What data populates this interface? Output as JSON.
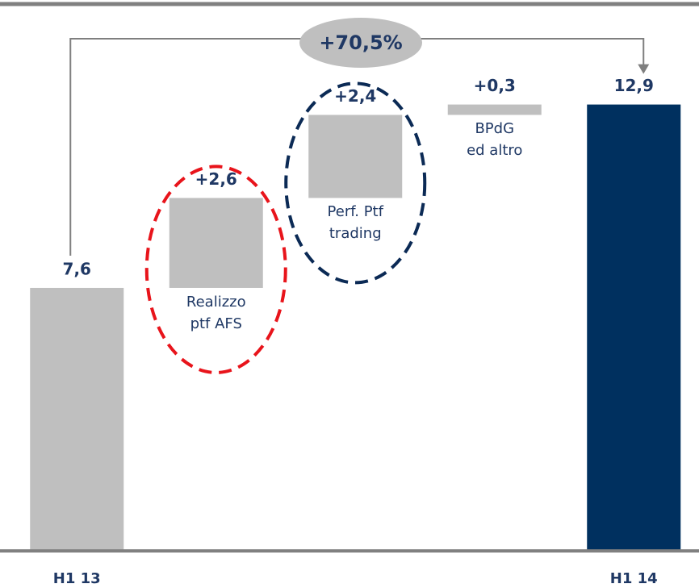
{
  "chart_data": {
    "type": "waterfall",
    "annotation": "+70,5%",
    "categories": [
      "H1 13",
      "Realizzo\nptf AFS",
      "Perf. Ptf\ntrading",
      "BPdG\ned altro",
      "H1 14"
    ],
    "values": [
      7.6,
      2.6,
      2.4,
      0.3,
      12.9
    ],
    "value_labels": [
      "7,6",
      "+2,6",
      "+2,4",
      "+0,3",
      "12,9"
    ],
    "totals": [
      true,
      false,
      false,
      false,
      true
    ],
    "colors": [
      "#bfbfbf",
      "#bfbfbf",
      "#bfbfbf",
      "#bfbfbf",
      "#00305f"
    ],
    "highlight_colors": [
      null,
      "#e8141b",
      "#0b2a55",
      null,
      null
    ],
    "ylim": [
      0,
      13
    ]
  }
}
